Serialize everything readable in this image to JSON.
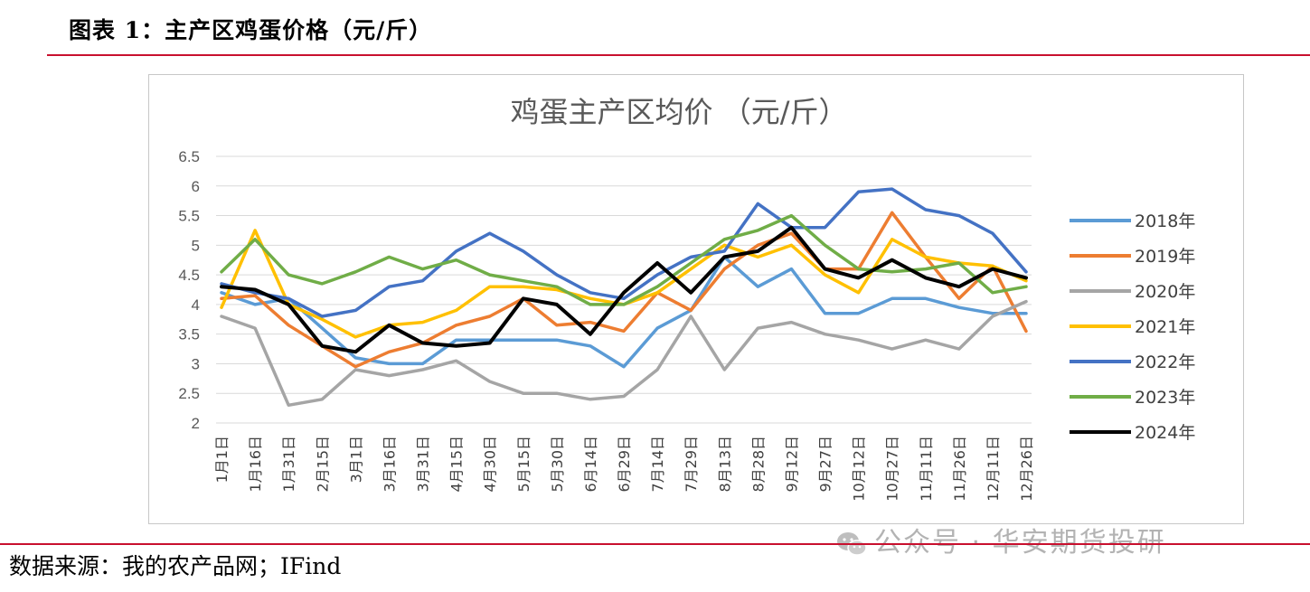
{
  "header": {
    "title": "图表 1：主产区鸡蛋价格（元/斤）"
  },
  "source": "数据来源：我的农产品网；IFind",
  "watermark": {
    "text": "公众号 · 华安期货投研",
    "icon": "wechat-icon"
  },
  "colors": {
    "rule": "#c8102e",
    "s2018": "#5b9bd5",
    "s2019": "#ed7d31",
    "s2020": "#a5a5a5",
    "s2021": "#ffc000",
    "s2022": "#4472c4",
    "s2023": "#70ad47",
    "s2024": "#000000"
  },
  "chart_data": {
    "type": "line",
    "title": "鸡蛋主产区均价 （元/斤）",
    "xlabel": "",
    "ylabel": "",
    "ylim": [
      2,
      6.5
    ],
    "yticks": [
      "6.5",
      "6",
      "5.5",
      "5",
      "4.5",
      "4",
      "3.5",
      "3",
      "2.5",
      "2"
    ],
    "grid": true,
    "legend_position": "right",
    "categories": [
      "1月1日",
      "1月16日",
      "1月31日",
      "2月15日",
      "3月1日",
      "3月16日",
      "3月31日",
      "4月15日",
      "4月30日",
      "5月15日",
      "5月30日",
      "6月14日",
      "6月29日",
      "7月14日",
      "7月29日",
      "8月13日",
      "8月28日",
      "9月12日",
      "9月27日",
      "10月12日",
      "10月27日",
      "11月11日",
      "11月26日",
      "12月11日",
      "12月26日"
    ],
    "series": [
      {
        "name": "2018年",
        "values": [
          4.2,
          4.0,
          4.1,
          3.6,
          3.1,
          3.0,
          3.0,
          3.4,
          3.4,
          3.4,
          3.4,
          3.3,
          2.95,
          3.6,
          3.9,
          4.8,
          4.3,
          4.6,
          3.85,
          3.85,
          4.1,
          4.1,
          3.95,
          3.85,
          3.85
        ]
      },
      {
        "name": "2019年",
        "values": [
          4.1,
          4.15,
          3.65,
          3.3,
          2.95,
          3.2,
          3.35,
          3.65,
          3.8,
          4.1,
          3.65,
          3.7,
          3.55,
          4.2,
          3.9,
          4.6,
          5.0,
          5.2,
          4.6,
          4.6,
          5.55,
          4.8,
          4.1,
          4.65,
          3.55
        ]
      },
      {
        "name": "2020年",
        "values": [
          3.8,
          3.6,
          2.3,
          2.4,
          2.9,
          2.8,
          2.9,
          3.05,
          2.7,
          2.5,
          2.5,
          2.4,
          2.45,
          2.9,
          3.8,
          2.9,
          3.6,
          3.7,
          3.5,
          3.4,
          3.25,
          3.4,
          3.25,
          3.8,
          4.05
        ]
      },
      {
        "name": "2021年",
        "values": [
          3.95,
          5.25,
          4.0,
          3.75,
          3.45,
          3.65,
          3.7,
          3.9,
          4.3,
          4.3,
          4.25,
          4.1,
          4.0,
          4.2,
          4.6,
          5.0,
          4.8,
          5.0,
          4.5,
          4.2,
          5.1,
          4.8,
          4.7,
          4.65,
          4.4
        ]
      },
      {
        "name": "2022年",
        "values": [
          4.35,
          4.2,
          4.1,
          3.8,
          3.9,
          4.3,
          4.4,
          4.9,
          5.2,
          4.9,
          4.5,
          4.2,
          4.1,
          4.5,
          4.8,
          4.9,
          5.7,
          5.3,
          5.3,
          5.9,
          5.95,
          5.6,
          5.5,
          5.2,
          4.55
        ]
      },
      {
        "name": "2023年",
        "values": [
          4.55,
          5.1,
          4.5,
          4.35,
          4.55,
          4.8,
          4.6,
          4.75,
          4.5,
          4.4,
          4.3,
          4.0,
          4.0,
          4.3,
          4.7,
          5.1,
          5.25,
          5.5,
          5.0,
          4.6,
          4.55,
          4.6,
          4.7,
          4.2,
          4.3
        ]
      },
      {
        "name": "2024年",
        "values": [
          4.3,
          4.25,
          4.0,
          3.3,
          3.2,
          3.65,
          3.35,
          3.3,
          3.35,
          4.1,
          4.0,
          3.5,
          4.2,
          4.7,
          4.2,
          4.8,
          4.9,
          5.3,
          4.6,
          4.45,
          4.75,
          4.45,
          4.3,
          4.6,
          4.45
        ]
      }
    ]
  }
}
